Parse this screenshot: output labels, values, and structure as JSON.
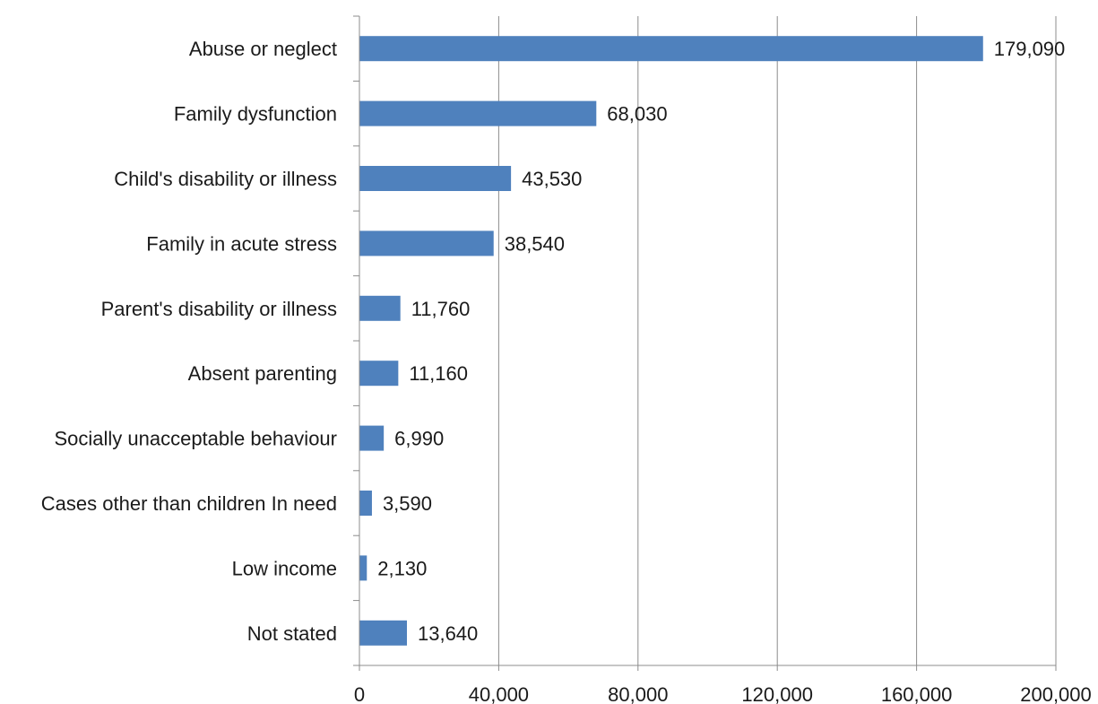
{
  "chart_data": {
    "type": "bar",
    "orientation": "horizontal",
    "categories": [
      "Abuse or neglect",
      "Family dysfunction",
      "Child's disability or illness",
      "Family in acute stress",
      "Parent's disability or illness",
      "Absent parenting",
      "Socially unacceptable behaviour",
      "Cases other than children In need",
      "Low income",
      "Not stated"
    ],
    "values": [
      179090,
      68030,
      43530,
      38540,
      11760,
      11160,
      6990,
      3590,
      2130,
      13640
    ],
    "value_labels": [
      "179,090",
      "68,030",
      "43,530",
      "38,540",
      "11,760",
      "11,160",
      "6,990",
      "3,590",
      "2,130",
      "13,640"
    ],
    "xlim": [
      0,
      200000
    ],
    "x_ticks": [
      0,
      40000,
      80000,
      120000,
      160000,
      200000
    ],
    "x_tick_labels": [
      "0",
      "40,000",
      "80,000",
      "120,000",
      "160,000",
      "200,000"
    ],
    "grid": "vertical",
    "legend": "none",
    "title": "",
    "xlabel": "",
    "ylabel": "",
    "bar_color": "#4f81bd"
  }
}
